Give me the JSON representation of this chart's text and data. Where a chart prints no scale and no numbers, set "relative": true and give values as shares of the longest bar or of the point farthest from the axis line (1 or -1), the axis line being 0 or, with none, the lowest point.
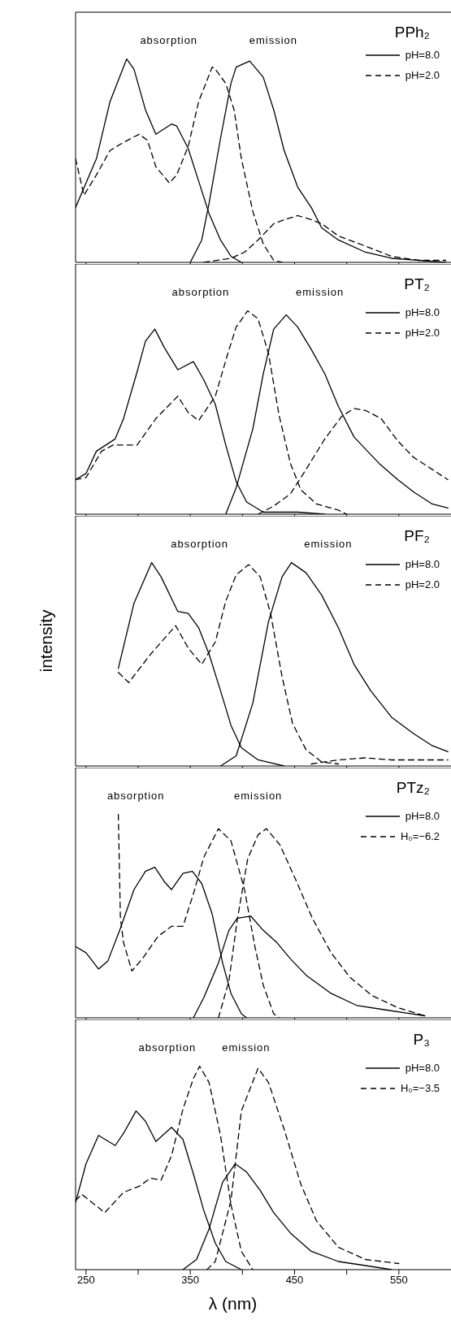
{
  "chart_data": [
    {
      "type": "line",
      "title": "PPh₂",
      "relative": true,
      "xlim": [
        240,
        600
      ],
      "xticks": [
        250,
        {
          "value": 300,
          "label": null
        },
        350,
        {
          "value": 400,
          "label": null
        },
        450,
        {
          "value": 500,
          "label": null
        },
        550
      ],
      "tick_labels": false,
      "legend": "top right",
      "annotations": [
        "absorption",
        "emission"
      ],
      "series": [
        {
          "name": "pH=8.0",
          "color": "#000000",
          "line_style": "solid",
          "x": [
            240,
            260,
            273,
            289,
            296,
            307,
            317,
            332,
            337,
            348,
            358,
            368,
            379,
            389,
            399
          ],
          "values": [
            0.27,
            0.51,
            0.79,
            1.0,
            0.95,
            0.75,
            0.63,
            0.68,
            0.67,
            0.56,
            0.4,
            0.24,
            0.11,
            0.03,
            0
          ]
        },
        {
          "name": "pH=2.0",
          "color": "#000000",
          "line_style": "dashed",
          "x": [
            240,
            248,
            260,
            273,
            286,
            301,
            309,
            317,
            330,
            337,
            348,
            358,
            371,
            374,
            384,
            392,
            399,
            410,
            420,
            430,
            438
          ],
          "values": [
            0.51,
            0.33,
            0.43,
            0.55,
            0.59,
            0.63,
            0.6,
            0.47,
            0.39,
            0.43,
            0.57,
            0.79,
            0.96,
            0.95,
            0.88,
            0.75,
            0.51,
            0.25,
            0.09,
            0.01,
            0
          ]
        },
        {
          "color": "#000000",
          "line_style": "solid",
          "x": [
            350,
            361,
            368,
            379,
            389,
            394,
            407,
            420,
            430,
            440,
            453,
            466,
            476,
            492,
            518,
            543,
            569,
            595
          ],
          "values": [
            0,
            0.11,
            0.29,
            0.61,
            0.88,
            0.96,
            0.99,
            0.91,
            0.75,
            0.55,
            0.37,
            0.27,
            0.17,
            0.11,
            0.05,
            0.02,
            0.01,
            0
          ]
        },
        {
          "color": "#000000",
          "line_style": "dashed",
          "x": [
            363,
            389,
            402,
            415,
            430,
            440,
            453,
            466,
            476,
            492,
            518,
            543,
            569,
            595
          ],
          "values": [
            0,
            0.02,
            0.05,
            0.11,
            0.19,
            0.21,
            0.23,
            0.21,
            0.19,
            0.13,
            0.08,
            0.03,
            0.01,
            0.01
          ]
        }
      ]
    },
    {
      "type": "line",
      "title": "PT₂",
      "relative": true,
      "xlim": [
        240,
        600
      ],
      "xticks": [
        250,
        {
          "value": 300,
          "label": null
        },
        350,
        {
          "value": 400,
          "label": null
        },
        450,
        {
          "value": 500,
          "label": null
        },
        550
      ],
      "tick_labels": false,
      "legend": "top right",
      "annotations": [
        "absorption",
        "emission"
      ],
      "series": [
        {
          "name": "pH=8.0",
          "color": "#000000",
          "line_style": "solid",
          "x": [
            240,
            250,
            260,
            278,
            286,
            299,
            307,
            316,
            325,
            338,
            353,
            363,
            374,
            384,
            394,
            404,
            420,
            453,
            479
          ],
          "values": [
            0.17,
            0.2,
            0.31,
            0.37,
            0.47,
            0.7,
            0.85,
            0.91,
            0.82,
            0.71,
            0.75,
            0.66,
            0.54,
            0.34,
            0.16,
            0.06,
            0.01,
            0.01,
            0
          ]
        },
        {
          "name": "pH=2.0",
          "color": "#000000",
          "line_style": "dashed",
          "x": [
            240,
            250,
            265,
            276,
            299,
            317,
            338,
            348,
            358,
            374,
            386,
            394,
            405,
            415,
            425,
            435,
            446,
            456,
            471,
            492,
            500
          ],
          "values": [
            0.17,
            0.18,
            0.31,
            0.34,
            0.34,
            0.47,
            0.58,
            0.5,
            0.46,
            0.58,
            0.79,
            0.92,
            1.0,
            0.96,
            0.79,
            0.49,
            0.25,
            0.12,
            0.05,
            0.02,
            0
          ]
        },
        {
          "color": "#000000",
          "line_style": "solid",
          "x": [
            384,
            394,
            410,
            420,
            430,
            442,
            453,
            466,
            479,
            492,
            507,
            518,
            531,
            549,
            564,
            582,
            597
          ],
          "values": [
            0,
            0.13,
            0.42,
            0.69,
            0.91,
            0.98,
            0.92,
            0.81,
            0.69,
            0.53,
            0.38,
            0.32,
            0.25,
            0.17,
            0.11,
            0.05,
            0.03
          ]
        },
        {
          "color": "#000000",
          "line_style": "dashed",
          "x": [
            415,
            430,
            446,
            461,
            479,
            495,
            507,
            518,
            533,
            549,
            564,
            582,
            597
          ],
          "values": [
            0,
            0.04,
            0.1,
            0.22,
            0.37,
            0.48,
            0.52,
            0.51,
            0.47,
            0.36,
            0.28,
            0.22,
            0.17
          ]
        }
      ]
    },
    {
      "type": "line",
      "title": "PF₂",
      "relative": true,
      "xlim": [
        240,
        600
      ],
      "xticks": [
        250,
        {
          "value": 300,
          "label": null
        },
        350,
        {
          "value": 400,
          "label": null
        },
        450,
        {
          "value": 500,
          "label": null
        },
        550
      ],
      "tick_labels": false,
      "legend": "top right",
      "ylabel": "intensity",
      "annotations": [
        "absorption",
        "emission"
      ],
      "series": [
        {
          "name": "pH=8.0",
          "color": "#000000",
          "line_style": "solid",
          "x": [
            281,
            296,
            313,
            322,
            338,
            348,
            358,
            368,
            379,
            389,
            399,
            415,
            440
          ],
          "values": [
            0.48,
            0.8,
            1.0,
            0.93,
            0.76,
            0.75,
            0.68,
            0.55,
            0.37,
            0.2,
            0.09,
            0.03,
            0
          ]
        },
        {
          "name": "pH=2.0",
          "color": "#000000",
          "line_style": "dashed",
          "x": [
            281,
            291,
            312,
            336,
            348,
            361,
            374,
            384,
            394,
            406,
            417,
            427,
            438,
            448,
            461,
            476,
            492
          ],
          "values": [
            0.46,
            0.41,
            0.55,
            0.69,
            0.58,
            0.5,
            0.61,
            0.81,
            0.94,
            0.99,
            0.93,
            0.75,
            0.44,
            0.21,
            0.08,
            0.02,
            0.01
          ]
        },
        {
          "color": "#000000",
          "line_style": "solid",
          "x": [
            379,
            394,
            410,
            425,
            438,
            447,
            461,
            476,
            492,
            507,
            523,
            543,
            564,
            582,
            597
          ],
          "values": [
            0,
            0.05,
            0.31,
            0.71,
            0.93,
            1.0,
            0.95,
            0.84,
            0.68,
            0.5,
            0.37,
            0.24,
            0.16,
            0.1,
            0.07
          ]
        },
        {
          "color": "#000000",
          "line_style": "dashed",
          "x": [
            466,
            492,
            518,
            543,
            569,
            597
          ],
          "values": [
            0.01,
            0.03,
            0.04,
            0.03,
            0.03,
            0.03
          ]
        }
      ]
    },
    {
      "type": "line",
      "title": "PTz₂",
      "relative": true,
      "xlim": [
        240,
        600
      ],
      "xticks": [
        250,
        {
          "value": 300,
          "label": null
        },
        350,
        {
          "value": 400,
          "label": null
        },
        450,
        {
          "value": 500,
          "label": null
        },
        550
      ],
      "tick_labels": false,
      "legend": "top right",
      "annotations": [
        "absorption",
        "emission"
      ],
      "series": [
        {
          "name": "pH=8.0",
          "color": "#000000",
          "line_style": "solid",
          "x": [
            240,
            250,
            262,
            271,
            283,
            296,
            307,
            316,
            325,
            332,
            343,
            352,
            361,
            371,
            381,
            389,
            399,
            404
          ],
          "values": [
            0.35,
            0.32,
            0.24,
            0.28,
            0.44,
            0.63,
            0.72,
            0.74,
            0.67,
            0.63,
            0.71,
            0.72,
            0.66,
            0.51,
            0.27,
            0.12,
            0.02,
            0
          ]
        },
        {
          "name": "H₀=−6.2",
          "color": "#000000",
          "line_style": "dashed",
          "x": [
            281,
            283,
            286,
            294,
            304,
            319,
            332,
            343,
            353,
            363,
            377,
            389,
            402,
            412,
            420,
            430,
            435
          ],
          "values": [
            1.0,
            0.49,
            0.37,
            0.23,
            0.29,
            0.4,
            0.45,
            0.45,
            0.61,
            0.79,
            0.93,
            0.87,
            0.63,
            0.35,
            0.16,
            0.02,
            0
          ]
        },
        {
          "color": "#000000",
          "line_style": "solid",
          "x": [
            353,
            363,
            377,
            387,
            395,
            408,
            420,
            433,
            446,
            461,
            485,
            510,
            536,
            575
          ],
          "values": [
            0,
            0.1,
            0.27,
            0.43,
            0.49,
            0.5,
            0.43,
            0.37,
            0.29,
            0.21,
            0.12,
            0.06,
            0.04,
            0.01
          ]
        },
        {
          "color": "#000000",
          "line_style": "dashed",
          "x": [
            377,
            387,
            395,
            405,
            415,
            423,
            436,
            451,
            467,
            485,
            503,
            524,
            549,
            575
          ],
          "values": [
            0,
            0.18,
            0.48,
            0.78,
            0.9,
            0.93,
            0.85,
            0.68,
            0.49,
            0.32,
            0.2,
            0.11,
            0.05,
            0.01
          ]
        }
      ]
    },
    {
      "type": "line",
      "title": "P₃",
      "relative": true,
      "xlim": [
        240,
        600
      ],
      "xticks": [
        250,
        {
          "value": 300,
          "label": null
        },
        350,
        {
          "value": 400,
          "label": null
        },
        450,
        {
          "value": 500,
          "label": null
        },
        550
      ],
      "tick_labels": "x",
      "xlabel": "λ (nm)",
      "legend": "top right",
      "annotations": [
        "absorption",
        "emission"
      ],
      "series": [
        {
          "name": "pH=8.0",
          "color": "#000000",
          "line_style": "solid",
          "x": [
            240,
            250,
            262,
            278,
            286,
            298,
            307,
            317,
            332,
            343,
            353,
            363,
            374,
            384,
            399
          ],
          "values": [
            0.33,
            0.52,
            0.66,
            0.61,
            0.67,
            0.78,
            0.73,
            0.63,
            0.7,
            0.64,
            0.47,
            0.29,
            0.13,
            0.04,
            0
          ]
        },
        {
          "name": "H₀=−3.5",
          "color": "#000000",
          "line_style": "dashed",
          "x": [
            240,
            246,
            268,
            286,
            301,
            312,
            322,
            332,
            343,
            353,
            359,
            368,
            379,
            389,
            399,
            410
          ],
          "values": [
            0.34,
            0.37,
            0.28,
            0.38,
            0.41,
            0.45,
            0.44,
            0.56,
            0.79,
            0.94,
            1.0,
            0.92,
            0.66,
            0.32,
            0.09,
            0
          ]
        },
        {
          "color": "#000000",
          "line_style": "solid",
          "x": [
            343,
            356,
            368,
            381,
            393,
            404,
            417,
            430,
            446,
            466,
            492,
            518,
            543
          ],
          "values": [
            0,
            0.05,
            0.2,
            0.43,
            0.52,
            0.48,
            0.39,
            0.28,
            0.18,
            0.09,
            0.04,
            0.02,
            0
          ]
        },
        {
          "color": "#000000",
          "line_style": "dashed",
          "x": [
            366,
            374,
            389,
            399,
            415,
            425,
            440,
            456,
            471,
            492,
            518,
            550
          ],
          "values": [
            0,
            0.04,
            0.34,
            0.78,
            0.99,
            0.92,
            0.69,
            0.42,
            0.24,
            0.11,
            0.05,
            0.03
          ]
        }
      ]
    }
  ]
}
